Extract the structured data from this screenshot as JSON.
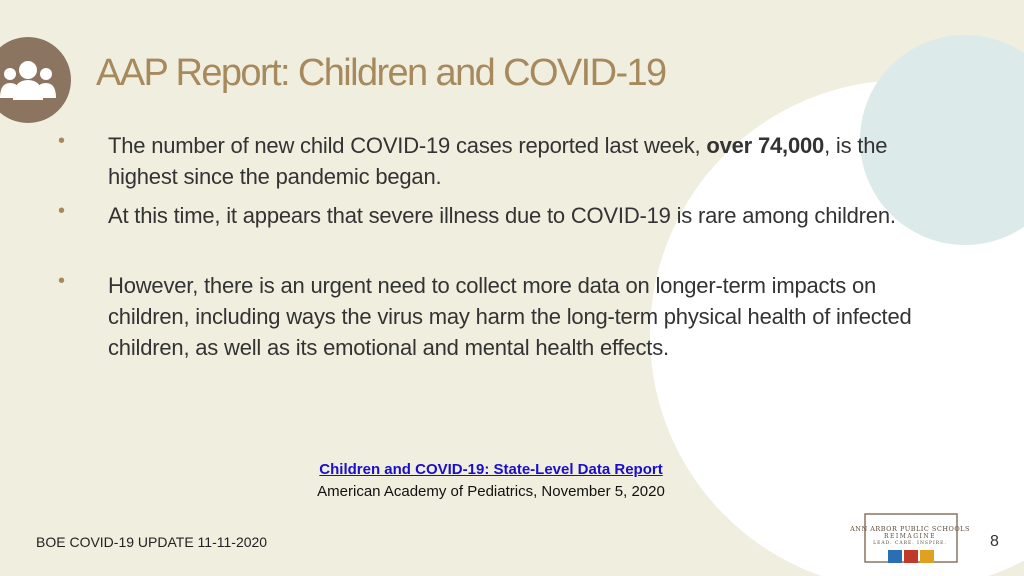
{
  "header": {
    "title": "AAP Report: Children and COVID-19"
  },
  "bullets": [
    [
      "The number of new child COVID-19 cases reported last week, ",
      "over 74,000",
      ", is the highest since the pandemic began."
    ],
    "At this time, it appears that severe illness due to COVID-19 is rare among children.",
    "However, there is an urgent need to collect more data on longer-term impacts on children, including ways the virus may harm the long-term physical health of infected children, as well as its emotional and mental health effects."
  ],
  "source": {
    "link": "Children and COVID-19: State-Level Data Report",
    "citation": "American Academy of Pediatrics, November 5, 2020"
  },
  "logo": {
    "name": "ANN ARBOR PUBLIC SCHOOLS",
    "tagline": "REIMAGINE",
    "motto": "LEAD. CARE. INSPIRE."
  },
  "footer": {
    "text": "BOE COVID-19 UPDATE 11-11-2020",
    "page": "8"
  }
}
